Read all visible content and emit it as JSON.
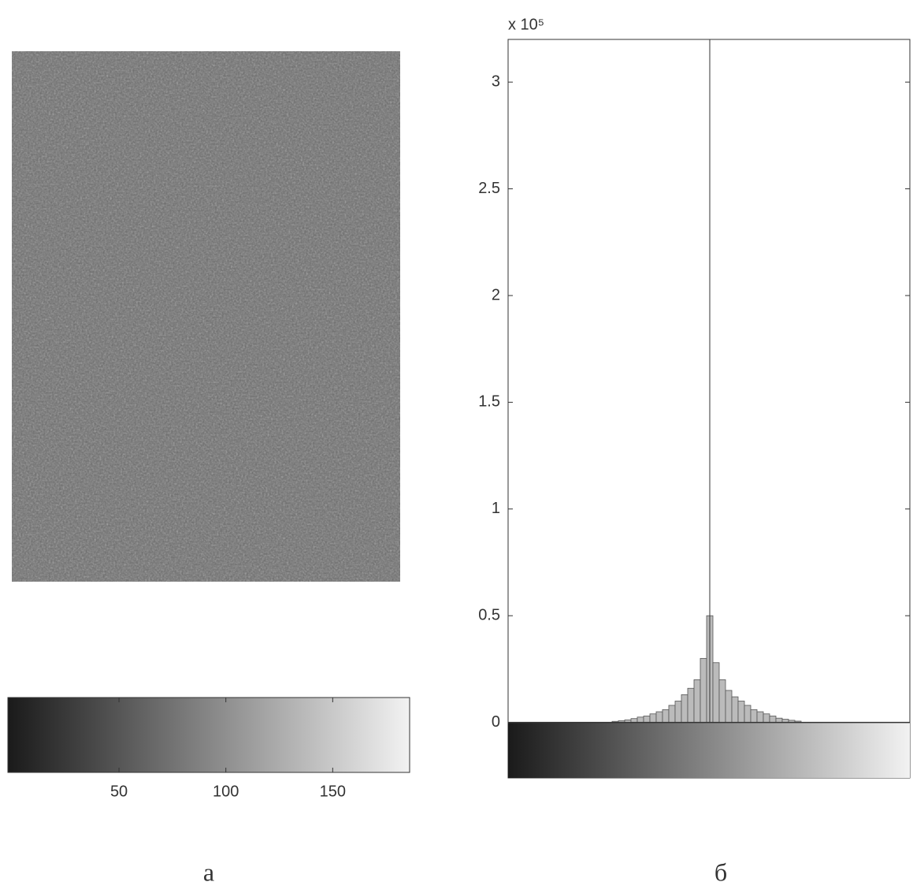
{
  "chart_data": [
    {
      "type": "image",
      "xlim": [
        -2,
        186
      ],
      "xticks": [
        50,
        100,
        150
      ],
      "label": "а"
    },
    {
      "type": "histogram",
      "multiplier": "x 10⁵",
      "xlim": [
        0,
        255
      ],
      "ylim": [
        -0.26,
        3.2
      ],
      "yticks": [
        0,
        0.5,
        1,
        1.5,
        2,
        2.5,
        3
      ],
      "vline": 128,
      "bins": [
        66,
        70,
        74,
        78,
        82,
        86,
        90,
        94,
        98,
        102,
        106,
        110,
        114,
        118,
        122,
        126,
        130,
        134,
        138,
        142,
        146,
        150,
        154,
        158,
        162,
        166,
        170,
        174,
        178,
        182,
        186
      ],
      "values": [
        0.005,
        0.008,
        0.012,
        0.018,
        0.025,
        0.03,
        0.04,
        0.05,
        0.06,
        0.08,
        0.1,
        0.13,
        0.16,
        0.2,
        0.3,
        0.5,
        0.28,
        0.2,
        0.15,
        0.12,
        0.1,
        0.08,
        0.06,
        0.05,
        0.04,
        0.03,
        0.02,
        0.015,
        0.01,
        0.006
      ],
      "color": "#555555",
      "label": "б"
    }
  ]
}
